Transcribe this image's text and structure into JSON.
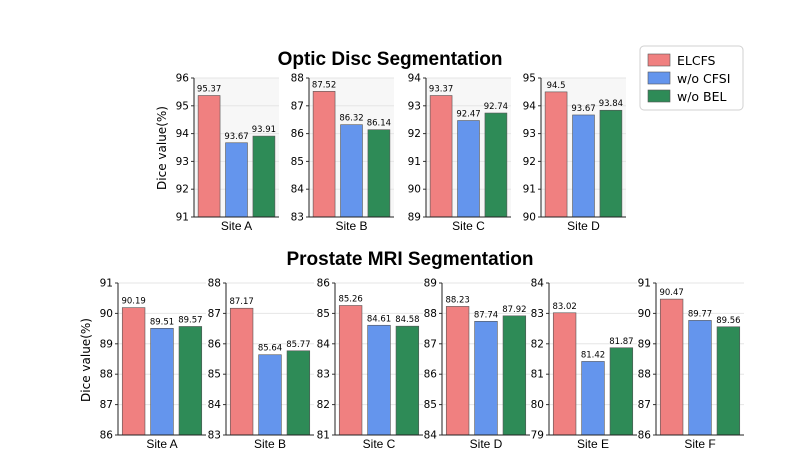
{
  "legend": {
    "entries": [
      {
        "label": "ELCFS",
        "color": "#F08080"
      },
      {
        "label": "w/o CFSI",
        "color": "#6495ED"
      },
      {
        "label": "w/o BEL",
        "color": "#2E8B57"
      }
    ]
  },
  "chart_data": [
    {
      "type": "bar",
      "title": "Optic Disc Segmentation",
      "ylabel": "Dice value(%)",
      "series_names": [
        "ELCFS",
        "w/o CFSI",
        "w/o BEL"
      ],
      "colors": [
        "#F08080",
        "#6495ED",
        "#2E8B57"
      ],
      "panels": [
        {
          "site": "Site A",
          "values": [
            95.37,
            93.67,
            93.91
          ],
          "value_labels": [
            "95.37",
            "93.67",
            "93.91"
          ],
          "ylim": [
            91,
            96
          ],
          "ticks": [
            91,
            92,
            93,
            94,
            95,
            96
          ]
        },
        {
          "site": "Site B",
          "values": [
            87.52,
            86.32,
            86.14
          ],
          "value_labels": [
            "87.52",
            "86.32",
            "86.14"
          ],
          "ylim": [
            83,
            88
          ],
          "ticks": [
            83,
            84,
            85,
            86,
            87,
            88
          ]
        },
        {
          "site": "Site C",
          "values": [
            93.37,
            92.47,
            92.74
          ],
          "value_labels": [
            "93.37",
            "92.47",
            "92.74"
          ],
          "ylim": [
            89,
            94
          ],
          "ticks": [
            89,
            90,
            91,
            92,
            93,
            94
          ]
        },
        {
          "site": "Site D",
          "values": [
            94.5,
            93.67,
            93.84
          ],
          "value_labels": [
            "94.5",
            "93.67",
            "93.84"
          ],
          "ylim": [
            90,
            95
          ],
          "ticks": [
            90,
            91,
            92,
            93,
            94,
            95
          ]
        }
      ]
    },
    {
      "type": "bar",
      "title": "Prostate MRI Segmentation",
      "ylabel": "Dice value(%)",
      "series_names": [
        "ELCFS",
        "w/o CFSI",
        "w/o BEL"
      ],
      "colors": [
        "#F08080",
        "#6495ED",
        "#2E8B57"
      ],
      "panels": [
        {
          "site": "Site A",
          "values": [
            90.19,
            89.51,
            89.57
          ],
          "value_labels": [
            "90.19",
            "89.51",
            "89.57"
          ],
          "ylim": [
            86,
            91
          ],
          "ticks": [
            86,
            87,
            88,
            89,
            90,
            91
          ]
        },
        {
          "site": "Site B",
          "values": [
            87.17,
            85.64,
            85.77
          ],
          "value_labels": [
            "87.17",
            "85.64",
            "85.77"
          ],
          "ylim": [
            83,
            88
          ],
          "ticks": [
            83,
            84,
            85,
            86,
            87,
            88
          ]
        },
        {
          "site": "Site C",
          "values": [
            85.26,
            84.61,
            84.58
          ],
          "value_labels": [
            "85.26",
            "84.61",
            "84.58"
          ],
          "ylim": [
            81,
            86
          ],
          "ticks": [
            81,
            82,
            83,
            84,
            85,
            86
          ]
        },
        {
          "site": "Site D",
          "values": [
            88.23,
            87.74,
            87.92
          ],
          "value_labels": [
            "88.23",
            "87.74",
            "87.92"
          ],
          "ylim": [
            84,
            89
          ],
          "ticks": [
            84,
            85,
            86,
            87,
            88,
            89
          ]
        },
        {
          "site": "Site E",
          "values": [
            83.02,
            81.42,
            81.87
          ],
          "value_labels": [
            "83.02",
            "81.42",
            "81.87"
          ],
          "ylim": [
            79,
            84
          ],
          "ticks": [
            79,
            80,
            81,
            82,
            83,
            84
          ]
        },
        {
          "site": "Site F",
          "values": [
            90.47,
            89.77,
            89.56
          ],
          "value_labels": [
            "90.47",
            "89.77",
            "89.56"
          ],
          "ylim": [
            86,
            91
          ],
          "ticks": [
            86,
            87,
            88,
            89,
            90,
            91
          ]
        }
      ]
    }
  ]
}
